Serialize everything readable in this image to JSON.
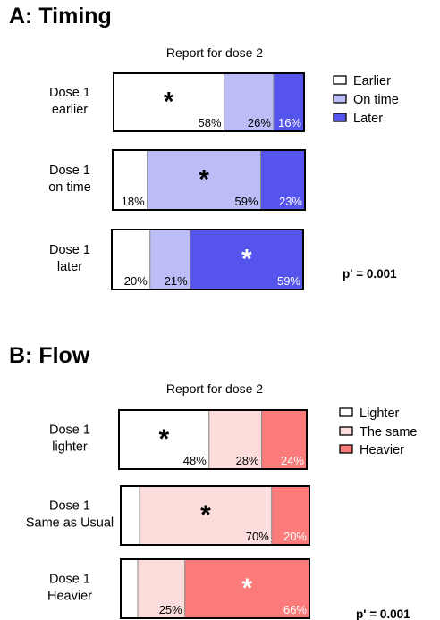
{
  "chart_data": [
    {
      "type": "bar",
      "stacked": true,
      "orientation": "horizontal",
      "panel_title": "A: Timing",
      "title": "Report for dose 2",
      "categories": [
        [
          "Dose 1",
          "earlier"
        ],
        [
          "Dose 1",
          "on time"
        ],
        [
          "Dose 1",
          "later"
        ]
      ],
      "series": [
        {
          "name": "Earlier",
          "values": [
            58,
            18,
            20
          ],
          "color": "#ffffff"
        },
        {
          "name": "On time",
          "values": [
            26,
            59,
            21
          ],
          "color": "#bcbcf6"
        },
        {
          "name": "Later",
          "values": [
            16,
            23,
            59
          ],
          "color": "#5555ee"
        }
      ],
      "labels": [
        [
          "58%",
          "26%",
          "16%"
        ],
        [
          "18%",
          "59%",
          "23%"
        ],
        [
          "20%",
          "21%",
          "59%"
        ]
      ],
      "stars": [
        {
          "row": 0,
          "series": 0,
          "color": "#000000"
        },
        {
          "row": 1,
          "series": 1,
          "color": "#000000"
        },
        {
          "row": 2,
          "series": 2,
          "color": "#ffffff"
        }
      ],
      "star_symbol": "*",
      "annotation": "p' = 0.001",
      "legend_position": "right"
    },
    {
      "type": "bar",
      "stacked": true,
      "orientation": "horizontal",
      "panel_title": "B: Flow",
      "title": "Report for dose 2",
      "categories": [
        [
          "Dose 1",
          "lighter"
        ],
        [
          "Dose 1",
          "Same as Usual"
        ],
        [
          "Dose 1",
          "Heavier"
        ]
      ],
      "series": [
        {
          "name": "Lighter",
          "values": [
            48,
            10,
            9
          ],
          "color": "#ffffff"
        },
        {
          "name": "The same",
          "values": [
            28,
            70,
            25
          ],
          "color": "#fddcdc"
        },
        {
          "name": "Heavier",
          "values": [
            24,
            20,
            66
          ],
          "color": "#fb7b7b"
        }
      ],
      "labels": [
        [
          "48%",
          "28%",
          "24%"
        ],
        [
          "",
          "70%",
          "20%"
        ],
        [
          "",
          "25%",
          "66%"
        ]
      ],
      "stars": [
        {
          "row": 0,
          "series": 0,
          "color": "#000000"
        },
        {
          "row": 1,
          "series": 1,
          "color": "#000000"
        },
        {
          "row": 2,
          "series": 2,
          "color": "#ffffff"
        }
      ],
      "star_symbol": "*",
      "annotation": "p' = 0.001",
      "legend_position": "right"
    }
  ]
}
